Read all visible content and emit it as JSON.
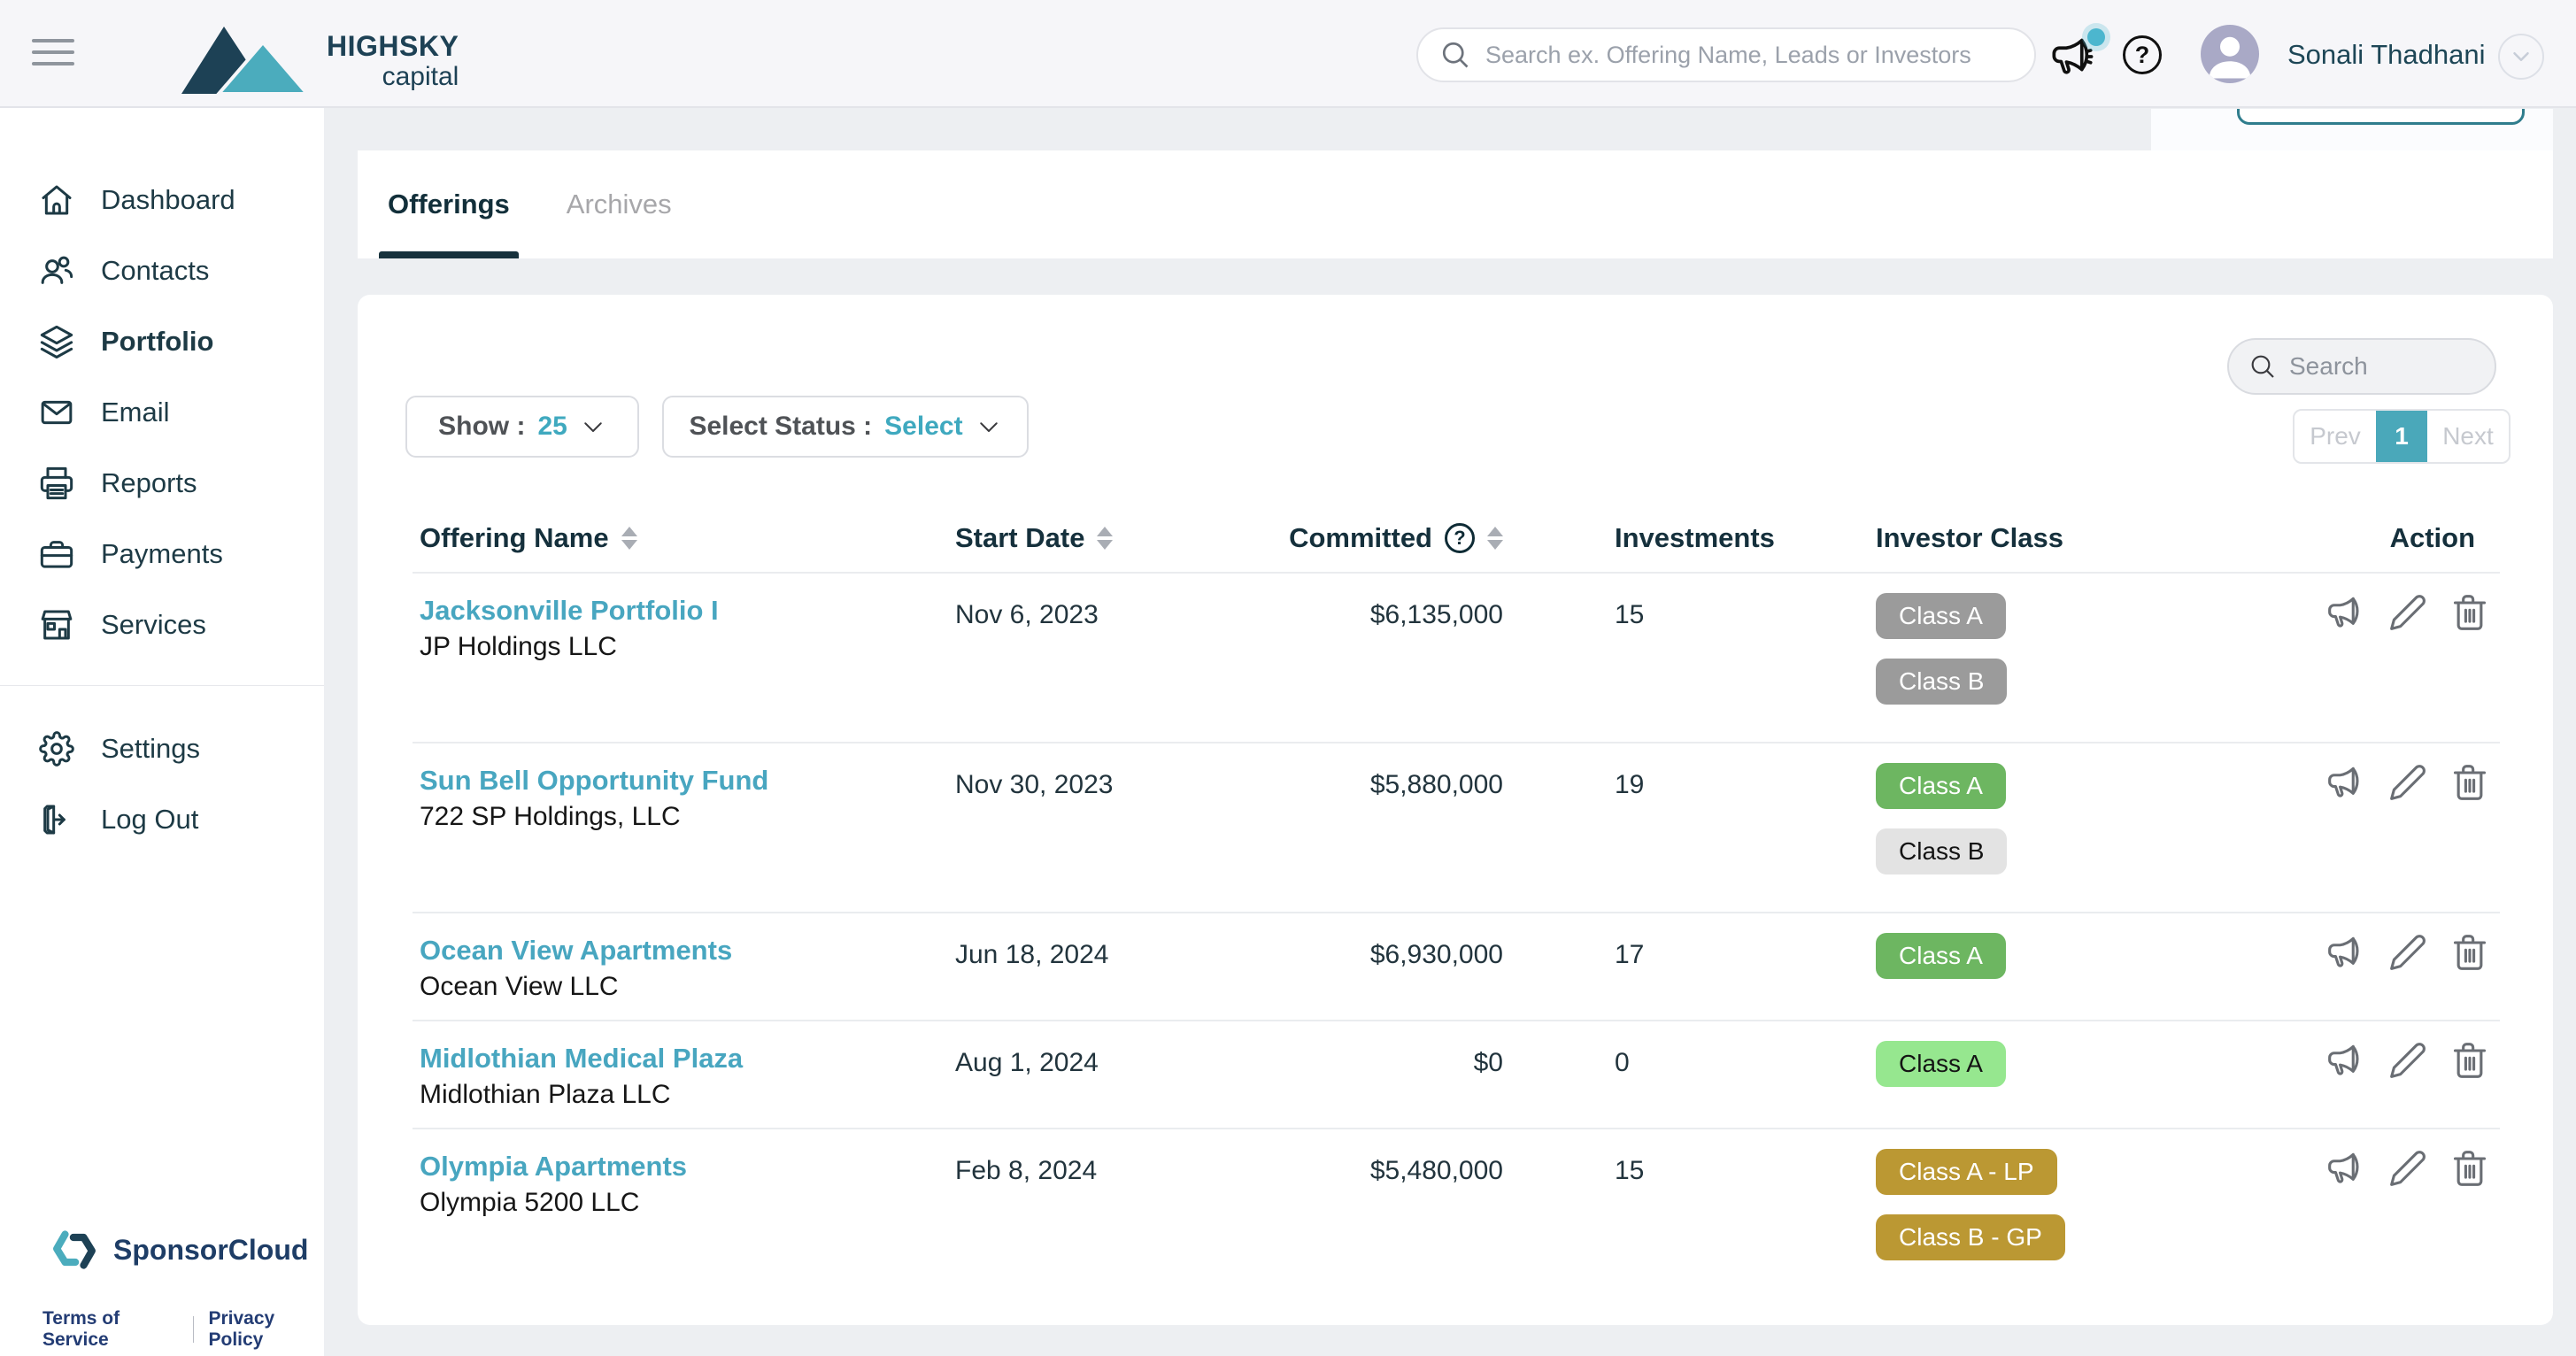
{
  "header": {
    "logo_line1": "HIGHSKY",
    "logo_line2": "capital",
    "search_placeholder": "Search ex. Offering Name, Leads or Investors",
    "user_name": "Sonali Thadhani",
    "help_glyph": "?"
  },
  "sidebar": {
    "items": [
      {
        "label": "Dashboard",
        "icon": "home-icon",
        "active": false
      },
      {
        "label": "Contacts",
        "icon": "contacts-icon",
        "active": false
      },
      {
        "label": "Portfolio",
        "icon": "layers-icon",
        "active": true
      },
      {
        "label": "Email",
        "icon": "mail-icon",
        "active": false
      },
      {
        "label": "Reports",
        "icon": "printer-icon",
        "active": false
      },
      {
        "label": "Payments",
        "icon": "briefcase-icon",
        "active": false
      },
      {
        "label": "Services",
        "icon": "store-icon",
        "active": false
      }
    ],
    "secondary": [
      {
        "label": "Settings",
        "icon": "gear-icon"
      },
      {
        "label": "Log Out",
        "icon": "logout-icon"
      }
    ],
    "brand": "SponsorCloud",
    "footer_links": [
      "Terms of Service",
      "Privacy Policy"
    ]
  },
  "tabs": [
    {
      "label": "Offerings",
      "active": true
    },
    {
      "label": "Archives",
      "active": false
    }
  ],
  "toolbar": {
    "show_label": "Show :",
    "show_value": "25",
    "status_label": "Select Status :",
    "status_value": "Select",
    "search_placeholder": "Search"
  },
  "pagination": {
    "prev": "Prev",
    "page": "1",
    "next": "Next"
  },
  "table": {
    "columns": [
      {
        "label": "Offering Name",
        "sortable": true
      },
      {
        "label": "Start Date",
        "sortable": true
      },
      {
        "label": "Committed",
        "sortable": true,
        "help": "?"
      },
      {
        "label": "Investments",
        "sortable": false
      },
      {
        "label": "Investor Class",
        "sortable": false
      },
      {
        "label": "Action",
        "sortable": false
      }
    ],
    "rows": [
      {
        "name": "Jacksonville Portfolio I",
        "entity": "JP Holdings LLC",
        "start_date": "Nov 6, 2023",
        "committed": "$6,135,000",
        "investments": "15",
        "classes": [
          {
            "label": "Class A",
            "style": "gray"
          },
          {
            "label": "Class B",
            "style": "gray"
          }
        ]
      },
      {
        "name": "Sun Bell Opportunity Fund",
        "entity": "722 SP Holdings, LLC",
        "start_date": "Nov 30, 2023",
        "committed": "$5,880,000",
        "investments": "19",
        "classes": [
          {
            "label": "Class A",
            "style": "green"
          },
          {
            "label": "Class B",
            "style": "lightgray"
          }
        ]
      },
      {
        "name": "Ocean View Apartments",
        "entity": "Ocean View LLC",
        "start_date": "Jun 18, 2024",
        "committed": "$6,930,000",
        "investments": "17",
        "classes": [
          {
            "label": "Class A",
            "style": "green"
          }
        ]
      },
      {
        "name": "Midlothian Medical Plaza",
        "entity": "Midlothian Plaza LLC",
        "start_date": "Aug 1, 2024",
        "committed": "$0",
        "investments": "0",
        "classes": [
          {
            "label": "Class A",
            "style": "lightgreen"
          }
        ]
      },
      {
        "name": "Olympia Apartments",
        "entity": "Olympia 5200 LLC",
        "start_date": "Feb 8, 2024",
        "committed": "$5,480,000",
        "investments": "15",
        "classes": [
          {
            "label": "Class A - LP",
            "style": "gold"
          },
          {
            "label": "Class B - GP",
            "style": "gold"
          }
        ]
      }
    ]
  },
  "colors": {
    "accent_teal": "#45a6bb",
    "link_teal": "#48a6c0",
    "navy": "#1d4155",
    "pagination_active": "#4aa8ba",
    "badge_gray": "#9b9b9b",
    "badge_green": "#6db661",
    "badge_lightgray": "#e3e3e3",
    "badge_lightgreen": "#96e78f",
    "badge_gold": "#bb9833",
    "topbar_bg": "#f6f6f9",
    "page_bg": "#edeff2"
  }
}
